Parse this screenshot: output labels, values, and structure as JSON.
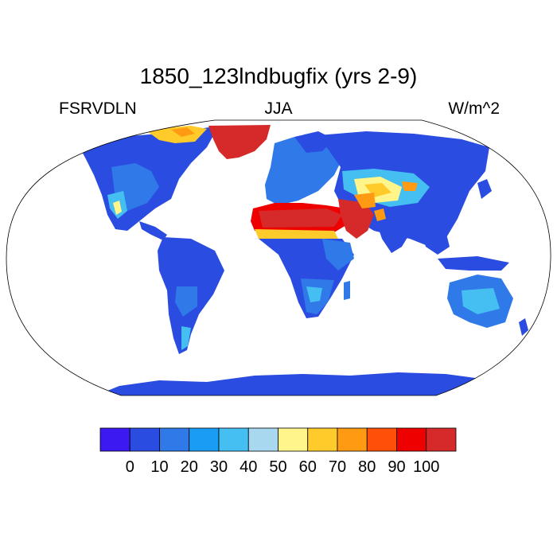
{
  "title": "1850_123lndbugfix (yrs 2-9)",
  "subtitle_left": "FSRVDLN",
  "subtitle_center": "JJA",
  "subtitle_right": "W/m^2",
  "colorbar": {
    "colors": [
      "#3b19f0",
      "#2b4ce0",
      "#2f7ae8",
      "#1a9cf5",
      "#45bef2",
      "#a8d8f0",
      "#fff58a",
      "#ffcb2a",
      "#ff9a12",
      "#ff4f08",
      "#ee0000",
      "#d62a2a"
    ],
    "ticks": [
      "0",
      "10",
      "20",
      "30",
      "40",
      "50",
      "60",
      "70",
      "80",
      "90",
      "100"
    ]
  }
}
